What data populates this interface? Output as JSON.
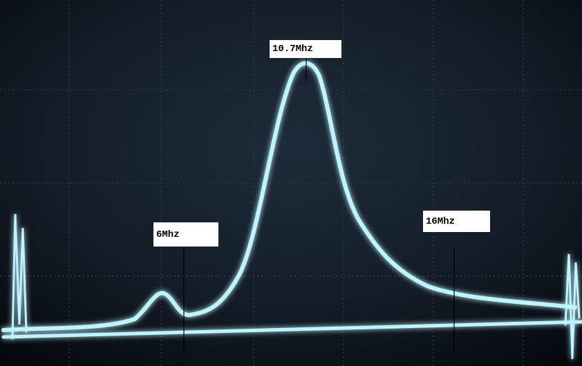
{
  "labels": {
    "center": "10.7Mhz",
    "left": "6Mhz",
    "right": "16Mhz"
  }
}
